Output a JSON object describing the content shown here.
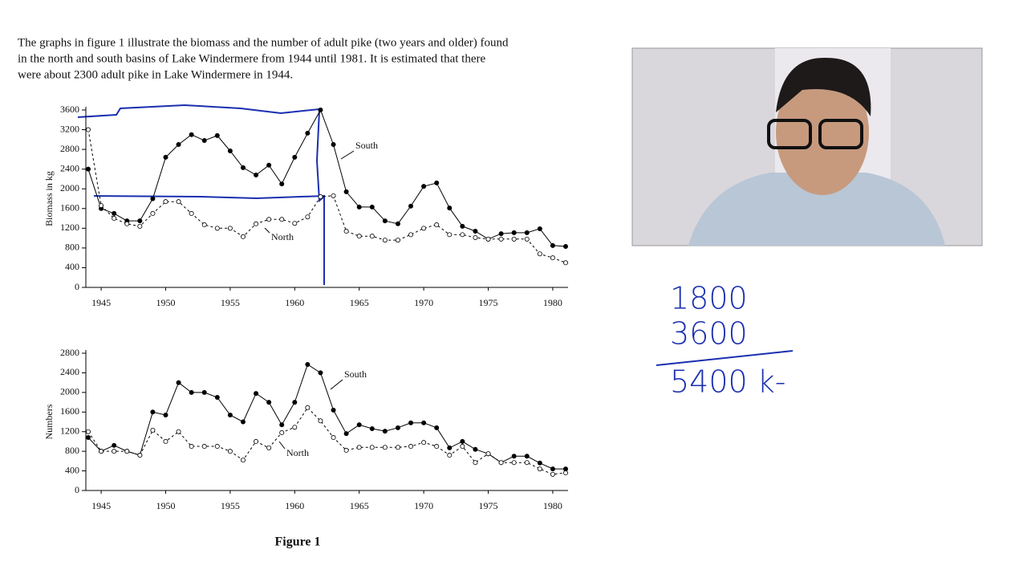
{
  "text": {
    "lines": [
      "The graphs in figure 1 illustrate the biomass and the number of adult pike (two years and older) found",
      "in the north and south basins of Lake Windermere from 1944 until 1981. It is estimated that there",
      "were about 2300 adult pike in Lake Windermere in 1944."
    ],
    "caption": "Figure 1"
  },
  "handwriting": [
    "1800",
    "3600",
    "5400 k-"
  ],
  "chart_data": [
    {
      "type": "line",
      "y_label": "Biomass in kg",
      "x": [
        1944,
        1945,
        1946,
        1947,
        1948,
        1949,
        1950,
        1951,
        1952,
        1953,
        1954,
        1955,
        1956,
        1957,
        1958,
        1959,
        1960,
        1961,
        1962,
        1963,
        1964,
        1965,
        1966,
        1967,
        1968,
        1969,
        1970,
        1971,
        1972,
        1973,
        1974,
        1975,
        1976,
        1977,
        1978,
        1979,
        1980,
        1981
      ],
      "series": [
        {
          "name": "South",
          "color": "#000000",
          "line_style": "solid",
          "marker_fill": "filled",
          "values": [
            2400,
            1600,
            1500,
            1350,
            1350,
            1800,
            2640,
            2900,
            3100,
            2980,
            3080,
            2770,
            2430,
            2280,
            2480,
            2100,
            2640,
            3130,
            3600,
            2900,
            1940,
            1630,
            1630,
            1350,
            1290,
            1650,
            2050,
            2120,
            1610,
            1240,
            1140,
            980,
            1090,
            1110,
            1110,
            1190,
            850,
            830
          ]
        },
        {
          "name": "North",
          "color": "#000000",
          "line_style": "dashed",
          "marker_fill": "open",
          "values": [
            3200,
            1660,
            1400,
            1290,
            1240,
            1500,
            1740,
            1740,
            1500,
            1270,
            1200,
            1200,
            1030,
            1290,
            1380,
            1380,
            1300,
            1430,
            1840,
            1860,
            1140,
            1040,
            1040,
            960,
            960,
            1070,
            1200,
            1270,
            1070,
            1070,
            1010,
            980,
            980,
            980,
            980,
            680,
            600,
            500
          ]
        }
      ],
      "xlim": [
        1944,
        1981
      ],
      "xticks": [
        1945,
        1950,
        1955,
        1960,
        1965,
        1970,
        1975,
        1980
      ],
      "ylim": [
        0,
        3600
      ],
      "yticks": [
        0,
        400,
        800,
        1200,
        1600,
        2000,
        2400,
        2800,
        3200,
        3600
      ]
    },
    {
      "type": "line",
      "y_label": "Numbers",
      "x": [
        1944,
        1945,
        1946,
        1947,
        1948,
        1949,
        1950,
        1951,
        1952,
        1953,
        1954,
        1955,
        1956,
        1957,
        1958,
        1959,
        1960,
        1961,
        1962,
        1963,
        1964,
        1965,
        1966,
        1967,
        1968,
        1969,
        1970,
        1971,
        1972,
        1973,
        1974,
        1975,
        1976,
        1977,
        1978,
        1979,
        1980,
        1981
      ],
      "series": [
        {
          "name": "South",
          "color": "#000000",
          "line_style": "solid",
          "marker_fill": "filled",
          "values": [
            1080,
            800,
            920,
            800,
            720,
            1600,
            1540,
            2200,
            2000,
            2000,
            1900,
            1540,
            1400,
            1980,
            1800,
            1340,
            1800,
            2570,
            2400,
            1640,
            1160,
            1340,
            1260,
            1210,
            1280,
            1380,
            1380,
            1280,
            870,
            1000,
            840,
            750,
            570,
            700,
            700,
            560,
            440,
            440
          ]
        },
        {
          "name": "North",
          "color": "#000000",
          "line_style": "dashed",
          "marker_fill": "open",
          "values": [
            1200,
            800,
            800,
            800,
            720,
            1230,
            1000,
            1200,
            900,
            900,
            900,
            800,
            620,
            1000,
            870,
            1180,
            1290,
            1690,
            1420,
            1080,
            820,
            880,
            880,
            880,
            880,
            900,
            980,
            900,
            720,
            900,
            570,
            750,
            570,
            570,
            570,
            440,
            330,
            360
          ]
        }
      ],
      "xlim": [
        1944,
        1981
      ],
      "xticks": [
        1945,
        1950,
        1955,
        1960,
        1965,
        1970,
        1975,
        1980
      ],
      "ylim": [
        0,
        2800
      ],
      "yticks": [
        0,
        400,
        800,
        1200,
        1600,
        2000,
        2400,
        2800
      ]
    }
  ]
}
